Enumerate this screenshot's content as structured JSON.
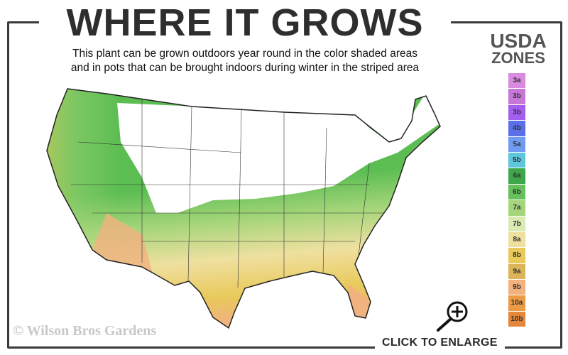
{
  "header": {
    "title": "WHERE IT GROWS",
    "subtitle_line1": "This plant can be grown outdoors year round in the color shaded areas",
    "subtitle_line2": "and in pots that can be brought indoors during winter in the striped area"
  },
  "legend": {
    "title_line1": "USDA",
    "title_line2": "ZONES",
    "zones": [
      {
        "label": "3a",
        "color": "#d98be0"
      },
      {
        "label": "3b",
        "color": "#c677d8"
      },
      {
        "label": "3b",
        "color": "#a35ef0"
      },
      {
        "label": "4b",
        "color": "#5a6fe8"
      },
      {
        "label": "5a",
        "color": "#6f9cf2"
      },
      {
        "label": "5b",
        "color": "#5ec6dd"
      },
      {
        "label": "6a",
        "color": "#3fa64a"
      },
      {
        "label": "6b",
        "color": "#66c15a"
      },
      {
        "label": "7a",
        "color": "#a5d57a"
      },
      {
        "label": "7b",
        "color": "#dbeab0"
      },
      {
        "label": "8a",
        "color": "#efe0a0"
      },
      {
        "label": "8b",
        "color": "#e8c95a"
      },
      {
        "label": "9a",
        "color": "#dcb55a"
      },
      {
        "label": "9b",
        "color": "#f1b27f"
      },
      {
        "label": "10a",
        "color": "#ec9a45"
      },
      {
        "label": "10b",
        "color": "#e5873a"
      }
    ]
  },
  "map": {
    "growing_zone_colors": [
      "#5bbd52",
      "#a5d57a",
      "#efe0a0",
      "#e8c95a",
      "#f1b27f"
    ],
    "unsuitable_fill": "#ffffff"
  },
  "footer": {
    "copyright": "© Wilson Bros Gardens",
    "enlarge_label": "CLICK TO ENLARGE",
    "enlarge_icon": "magnifier-plus-icon"
  }
}
